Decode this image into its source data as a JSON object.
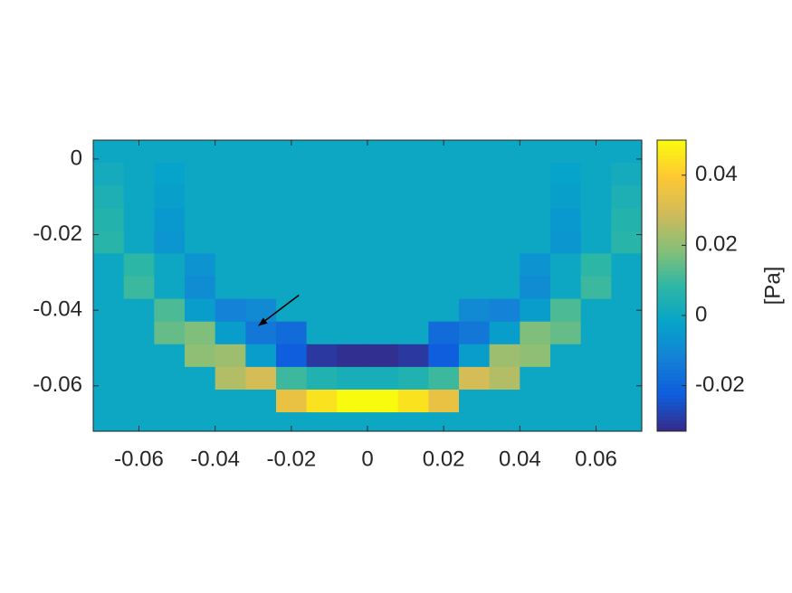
{
  "chart_data": {
    "type": "heatmap",
    "x": [
      -0.068,
      -0.06,
      -0.052,
      -0.044,
      -0.036,
      -0.028,
      -0.02,
      -0.012,
      -0.004,
      0.004,
      0.012,
      0.02,
      0.028,
      0.036,
      0.044,
      0.052,
      0.06,
      0.068
    ],
    "y": [
      0.002,
      -0.004,
      -0.01,
      -0.016,
      -0.022,
      -0.028,
      -0.034,
      -0.04,
      -0.046,
      -0.052,
      -0.058,
      -0.064,
      -0.07
    ],
    "z": [
      [
        0,
        0,
        0,
        0,
        0,
        0,
        0,
        0,
        0,
        0,
        0,
        0,
        0,
        0,
        0,
        0,
        0,
        0
      ],
      [
        0.002,
        0,
        -0.002,
        0,
        0,
        0,
        0,
        0,
        0,
        0,
        0,
        0,
        0,
        0,
        0,
        -0.002,
        0,
        0.002
      ],
      [
        0.004,
        0,
        -0.003,
        0,
        0,
        0,
        0,
        0,
        0,
        0,
        0,
        0,
        0,
        0,
        0,
        -0.003,
        0,
        0.004
      ],
      [
        0.006,
        0,
        -0.005,
        0,
        0,
        0,
        0,
        0,
        0,
        0,
        0,
        0,
        0,
        0,
        0,
        -0.005,
        0,
        0.006
      ],
      [
        0.007,
        0,
        -0.006,
        0,
        0,
        0,
        0,
        0,
        0,
        0,
        0,
        0,
        0,
        0,
        0,
        -0.006,
        0,
        0.007
      ],
      [
        0,
        0.008,
        0,
        -0.007,
        0,
        0,
        0,
        0,
        0,
        0,
        0,
        0,
        0,
        0,
        -0.007,
        0,
        0.008,
        0
      ],
      [
        0,
        0.01,
        0,
        -0.009,
        0,
        0,
        0,
        0,
        0,
        0,
        0,
        0,
        0,
        0,
        -0.009,
        0,
        0.01,
        0
      ],
      [
        0,
        0,
        0.012,
        -0.004,
        -0.012,
        -0.01,
        0,
        0,
        0,
        0,
        0,
        0,
        -0.01,
        -0.012,
        -0.004,
        0.012,
        0,
        0
      ],
      [
        0,
        0,
        0.015,
        0.018,
        -0.004,
        -0.015,
        -0.018,
        0,
        0,
        0,
        0,
        -0.018,
        -0.015,
        -0.004,
        0.018,
        0.015,
        0,
        0
      ],
      [
        0,
        0,
        0,
        0.02,
        0.022,
        -0.004,
        -0.022,
        -0.03,
        -0.032,
        -0.032,
        -0.03,
        -0.022,
        -0.004,
        0.022,
        0.02,
        0,
        0,
        0
      ],
      [
        0,
        0,
        0,
        0,
        0.025,
        0.03,
        0.01,
        0.005,
        0.003,
        0.003,
        0.005,
        0.01,
        0.03,
        0.025,
        0,
        0,
        0,
        0
      ],
      [
        0,
        0,
        0,
        0,
        0,
        0,
        0.035,
        0.045,
        0.05,
        0.05,
        0.045,
        0.035,
        0,
        0,
        0,
        0,
        0,
        0
      ],
      [
        0,
        0,
        0,
        0,
        0,
        0,
        0,
        0,
        0,
        0,
        0,
        0,
        0,
        0,
        0,
        0,
        0,
        0
      ]
    ],
    "xlim": [
      -0.072,
      0.072
    ],
    "ylim": [
      -0.072,
      0.005
    ],
    "xticks": [
      -0.06,
      -0.04,
      -0.02,
      0,
      0.02,
      0.04,
      0.06
    ],
    "yticks": [
      0,
      -0.02,
      -0.04,
      -0.06
    ],
    "clim": [
      -0.033,
      0.05
    ],
    "cticks": [
      -0.02,
      0,
      0.02,
      0.04
    ],
    "colorbar_label": "[Pa]",
    "colormap": [
      "#352a87",
      "#0f5cdd",
      "#1481d6",
      "#06a4ca",
      "#2eb7a4",
      "#87bf77",
      "#d1bb59",
      "#fec832",
      "#f9fb0e"
    ],
    "arrow": {
      "from": [
        -0.018,
        -0.036
      ],
      "to": [
        -0.0285,
        -0.044
      ]
    }
  }
}
